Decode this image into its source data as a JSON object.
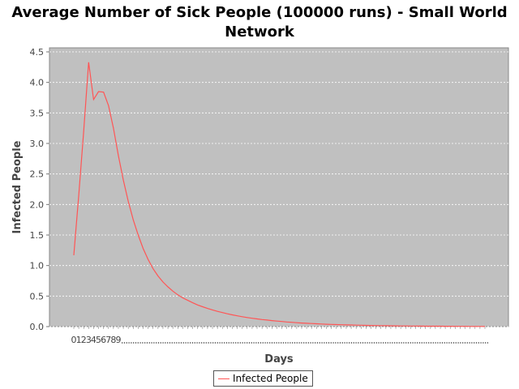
{
  "chart_data": {
    "type": "line",
    "title_line1": "Average Number of Sick People (100000 runs) - Small World",
    "title_line2": "Network",
    "xlabel": "Days",
    "ylabel": "Infected People",
    "ylim": [
      0.0,
      4.5
    ],
    "yticks": [
      "0.0",
      "0.5",
      "1.0",
      "1.5",
      "2.0",
      "2.5",
      "3.0",
      "3.5",
      "4.0",
      "4.5"
    ],
    "xtick_labels": [
      "0",
      "1",
      "2",
      "3",
      "4",
      "5",
      "6",
      "7",
      "8",
      "9"
    ],
    "x_categories_count": 84,
    "grid": true,
    "legend_position": "bottom-center",
    "series": [
      {
        "name": "Infected People",
        "color": "#ff5555",
        "values": [
          1.17,
          2.15,
          3.2,
          4.33,
          3.72,
          3.85,
          3.84,
          3.62,
          3.25,
          2.8,
          2.4,
          2.05,
          1.75,
          1.5,
          1.28,
          1.1,
          0.95,
          0.83,
          0.73,
          0.65,
          0.58,
          0.52,
          0.47,
          0.43,
          0.39,
          0.355,
          0.325,
          0.298,
          0.273,
          0.25,
          0.23,
          0.21,
          0.193,
          0.177,
          0.162,
          0.149,
          0.137,
          0.126,
          0.116,
          0.107,
          0.098,
          0.09,
          0.083,
          0.076,
          0.07,
          0.064,
          0.059,
          0.054,
          0.05,
          0.046,
          0.042,
          0.039,
          0.036,
          0.033,
          0.03,
          0.028,
          0.026,
          0.024,
          0.022,
          0.02,
          0.018,
          0.017,
          0.016,
          0.014,
          0.013,
          0.012,
          0.011,
          0.01,
          0.009,
          0.009,
          0.008,
          0.007,
          0.007,
          0.006,
          0.006,
          0.005,
          0.005,
          0.004,
          0.004,
          0.004,
          0.003,
          0.003,
          0.003,
          0.002
        ]
      }
    ]
  }
}
